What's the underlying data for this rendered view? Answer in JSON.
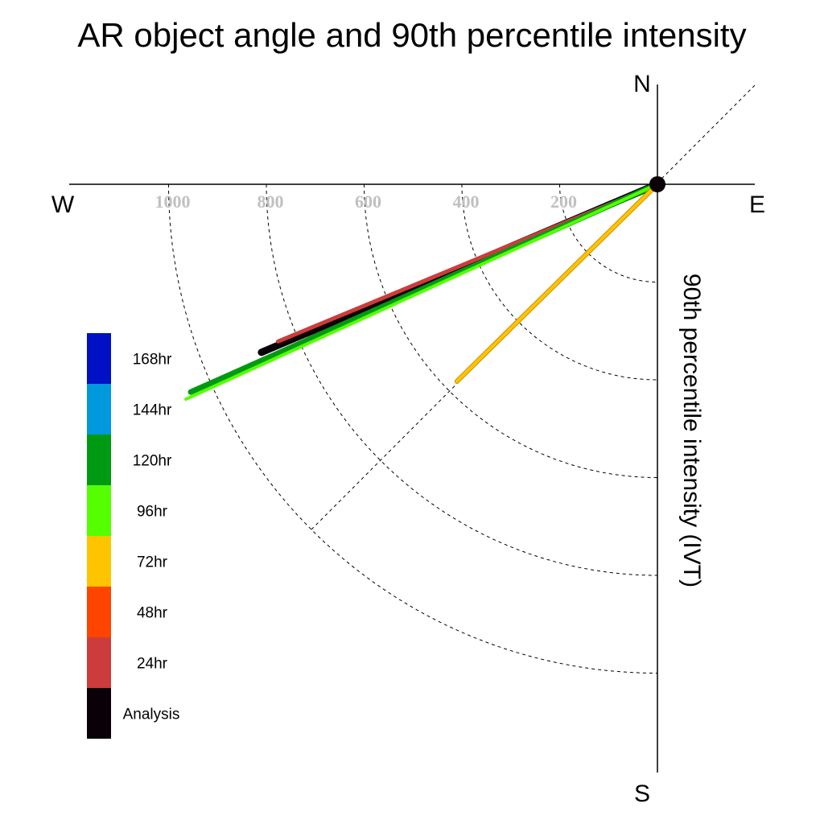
{
  "chart_data": {
    "type": "polar-vector",
    "title": "AR object angle and 90th percentile intensity",
    "ylabel": "90th percentile intensity (IVT)",
    "compass": {
      "north": "N",
      "south": "S",
      "east": "E",
      "west": "W"
    },
    "radial_ticks": [
      200,
      400,
      600,
      800,
      1000
    ],
    "grid": true,
    "legend_position": "left",
    "legend": [
      {
        "label": "168hr",
        "color": "#0010c4"
      },
      {
        "label": "144hr",
        "color": "#0099dd"
      },
      {
        "label": "120hr",
        "color": "#009a12"
      },
      {
        "label": "96hr",
        "color": "#55ff00"
      },
      {
        "label": "72hr",
        "color": "#ffc400"
      },
      {
        "label": "48hr",
        "color": "#ff4400"
      },
      {
        "label": "24hr",
        "color": "#cc3c3c"
      },
      {
        "label": "Analysis",
        "color": "#0a0008"
      }
    ],
    "series": [
      {
        "name": "Analysis",
        "color": "#0a0008",
        "angle_deg": 247,
        "intensity": 880
      },
      {
        "name": "24hr",
        "color": "#cc3c3c",
        "angle_deg": 247.5,
        "intensity": 840
      },
      {
        "name": "120hr",
        "color": "#009a12",
        "angle_deg": 246,
        "intensity": 1045
      },
      {
        "name": "96hr",
        "color": "#55ff00",
        "angle_deg": 245.5,
        "intensity": 1060
      },
      {
        "name": "72hr",
        "color": "#ffc400",
        "angle_deg": 225.5,
        "intensity": 575
      }
    ]
  }
}
